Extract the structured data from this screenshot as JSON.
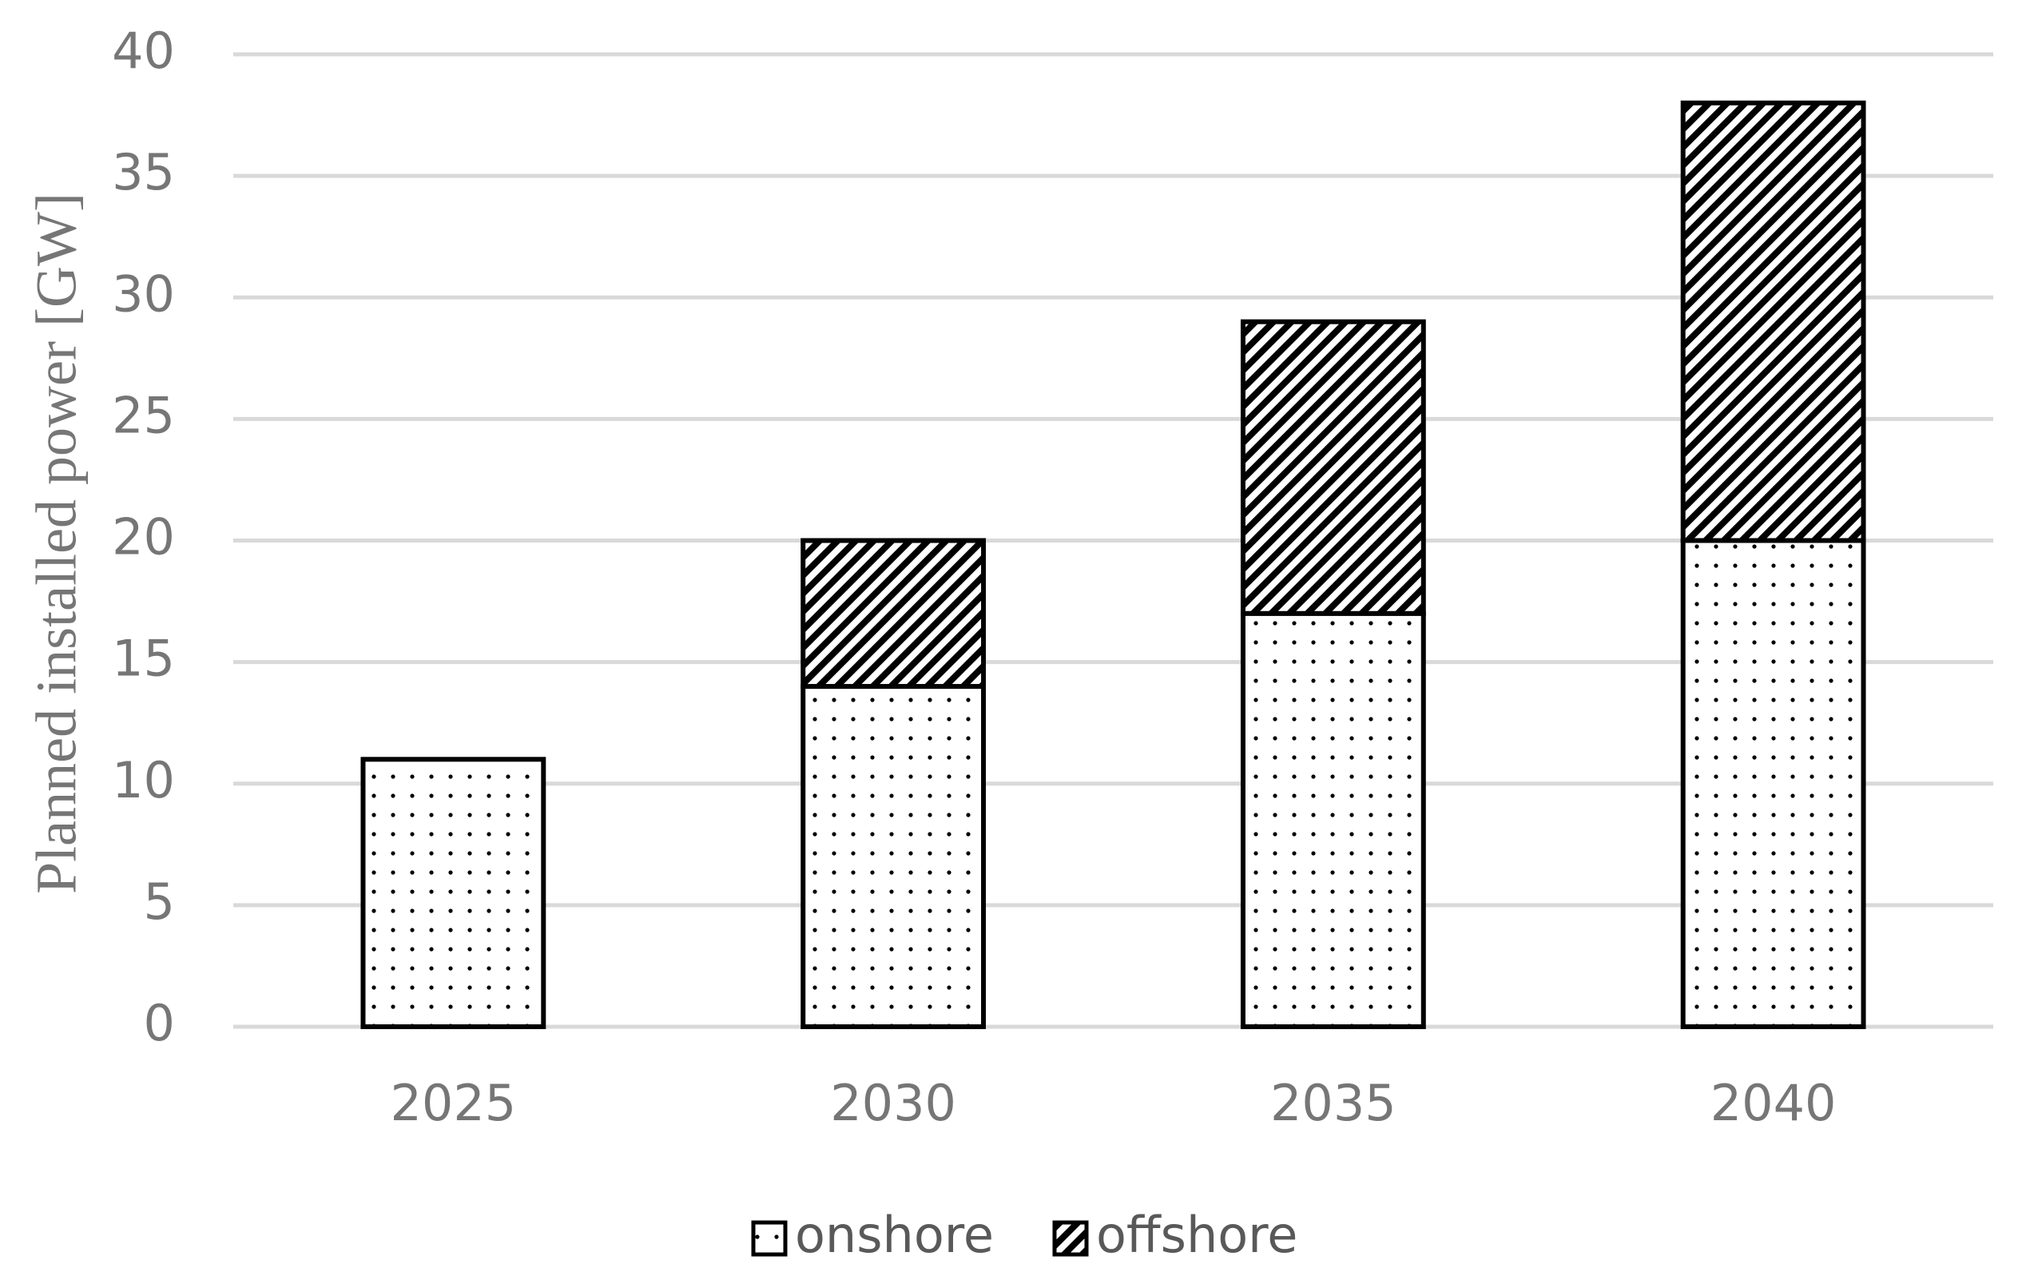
{
  "chart_data": {
    "type": "stacked_bar",
    "categories": [
      "2025",
      "2030",
      "2035",
      "2040"
    ],
    "series": [
      {
        "name": "onshore",
        "color": "#000000",
        "values": [
          11,
          14,
          17,
          20
        ]
      },
      {
        "name": "offshore",
        "color": "#000000",
        "values": [
          null,
          6,
          12,
          18
        ]
      }
    ],
    "y_label": "Planned installed power [GW]",
    "ylim": [
      0,
      40
    ],
    "yticks": [
      0,
      5,
      10,
      15,
      20,
      25,
      30,
      35,
      40
    ],
    "grid": true,
    "legend": "bottom"
  }
}
